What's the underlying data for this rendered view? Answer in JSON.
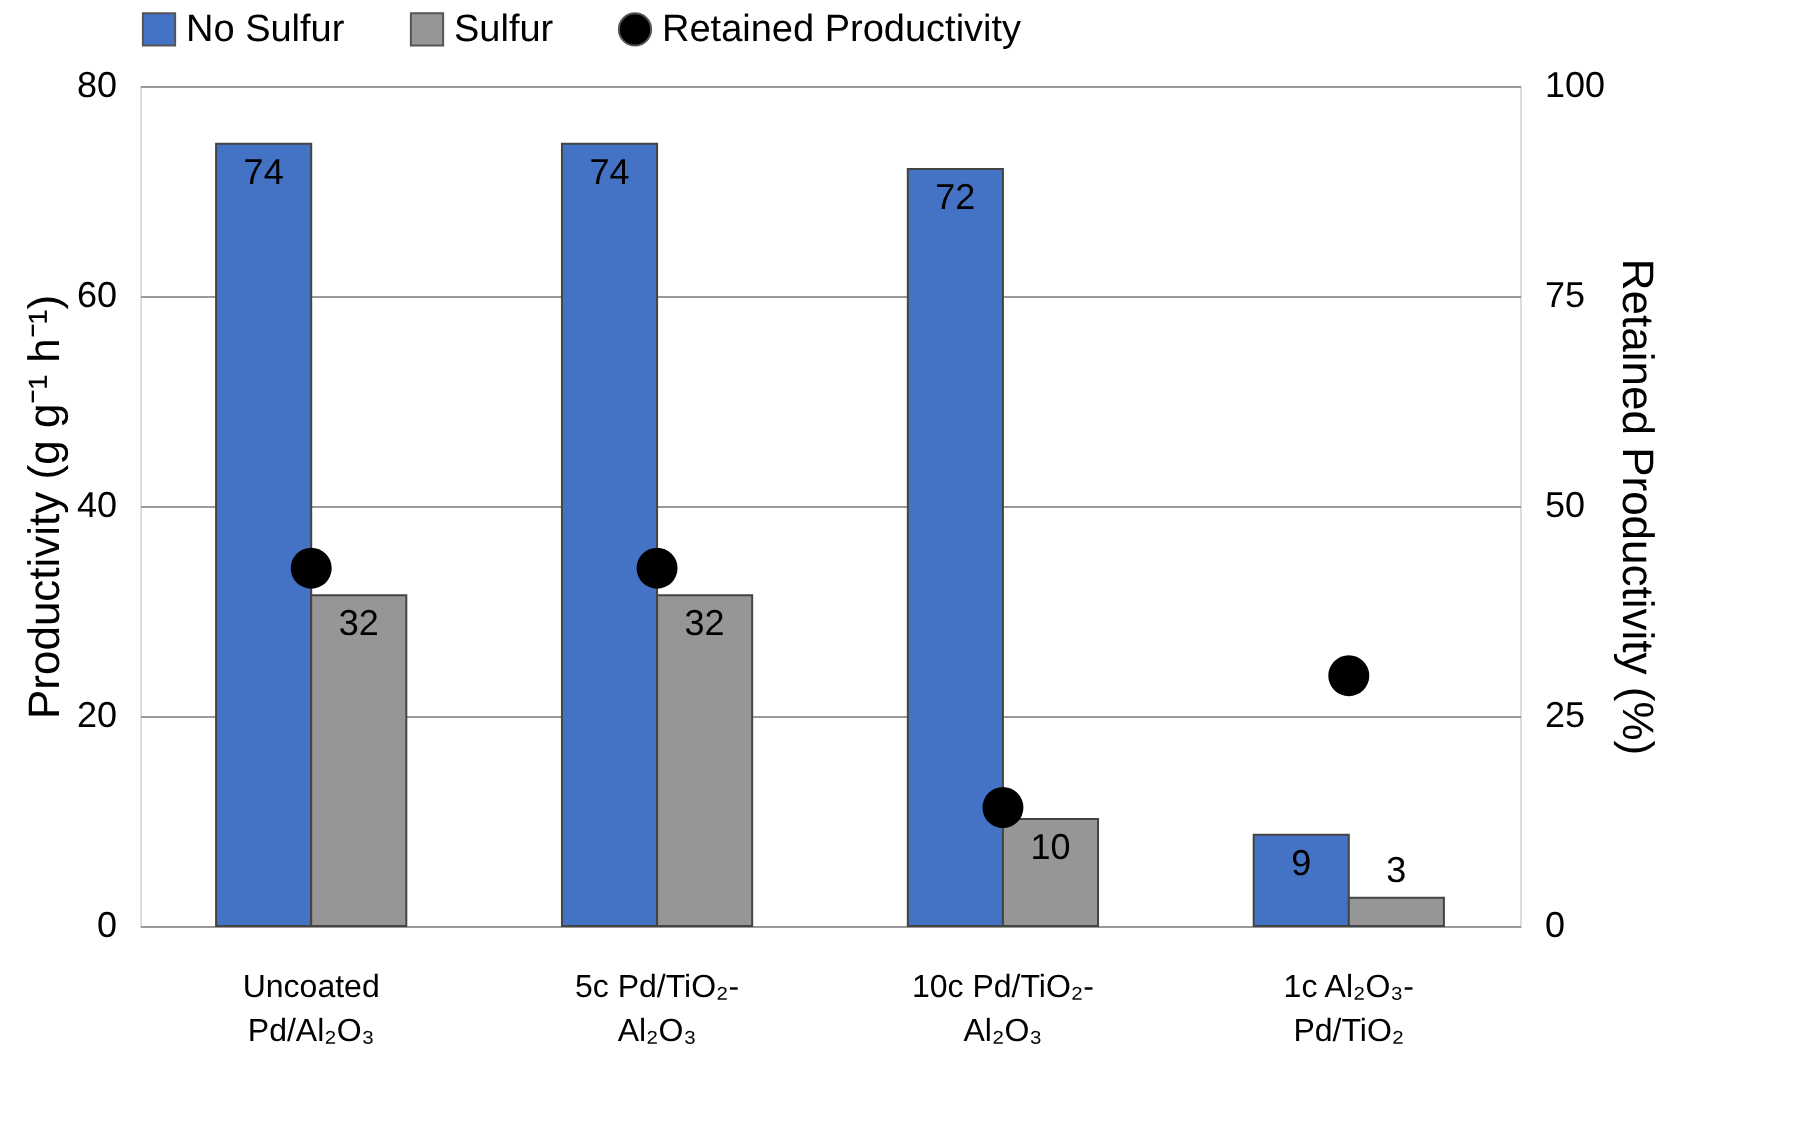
{
  "chart_data": {
    "type": "bar",
    "categories": [
      "Uncoated\nPd/Al₂O₃",
      "5c Pd/TiO₂-\nAl₂O₃",
      "10c Pd/TiO₂-\nAl₂O₃",
      "1c Al₂O₃-\nPd/TiO₂"
    ],
    "series": [
      {
        "name": "No Sulfur",
        "color": "#4472c4",
        "values": [
          74.5,
          74.5,
          72.1,
          8.7
        ],
        "value_labels": [
          "74",
          "74",
          "72",
          "9"
        ]
      },
      {
        "name": "Sulfur",
        "color": "#969696",
        "values": [
          31.5,
          31.5,
          10.2,
          2.7
        ],
        "value_labels": [
          "32",
          "32",
          "10",
          "3"
        ]
      },
      {
        "name": "Retained Productivity",
        "type": "scatter",
        "axis": "y2",
        "color": "#000000",
        "marker": "circle",
        "values": [
          42.6,
          42.6,
          14.1,
          29.8
        ]
      }
    ],
    "ylabel": "Productivity (g g⁻¹ h⁻¹)",
    "y2label": "Retained Productivity (%)",
    "ylim": [
      0,
      80
    ],
    "yticks": [
      0,
      20,
      40,
      60,
      80
    ],
    "y2lim": [
      0,
      100
    ],
    "y2ticks": [
      0,
      25,
      50,
      75,
      100
    ],
    "grid": "y",
    "legend": "top"
  }
}
